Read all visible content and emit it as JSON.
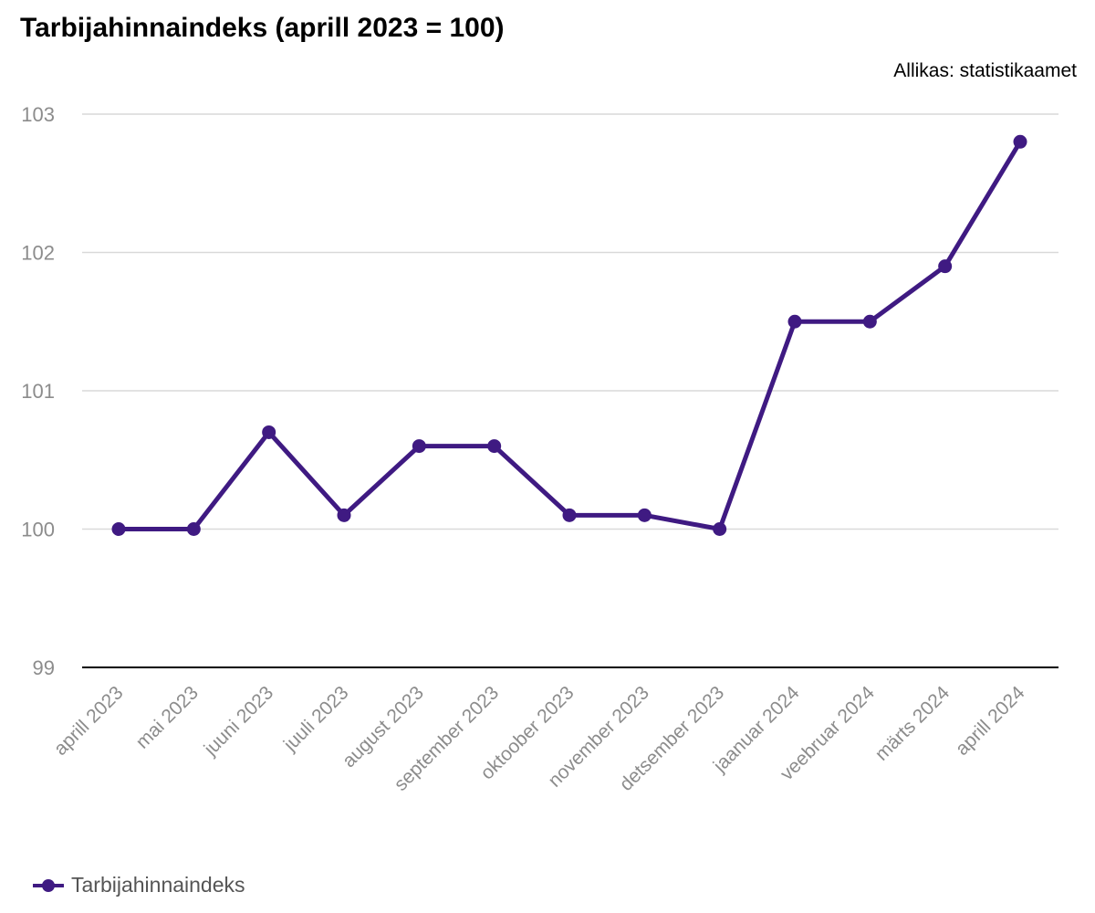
{
  "chart_data": {
    "type": "line",
    "title": "Tarbijahinnaindeks (aprill 2023 = 100)",
    "source_label": "Allikas: statistikaamet",
    "categories": [
      "aprill 2023",
      "mai 2023",
      "juuni 2023",
      "juuli 2023",
      "august 2023",
      "september 2023",
      "oktoober 2023",
      "november 2023",
      "detsember 2023",
      "jaanuar 2024",
      "veebruar 2024",
      "märts 2024",
      "aprill 2024"
    ],
    "series": [
      {
        "name": "Tarbijahinnaindeks",
        "color": "#3f1a82",
        "values": [
          100.0,
          100.0,
          100.7,
          100.1,
          100.6,
          100.6,
          100.1,
          100.1,
          100.0,
          101.5,
          101.5,
          101.9,
          102.8
        ]
      }
    ],
    "ylim": [
      99,
      103
    ],
    "yticks": [
      99,
      100,
      101,
      102,
      103
    ],
    "xlabel": "",
    "ylabel": "",
    "grid": "horizontal",
    "legend_position": "bottom-left"
  }
}
